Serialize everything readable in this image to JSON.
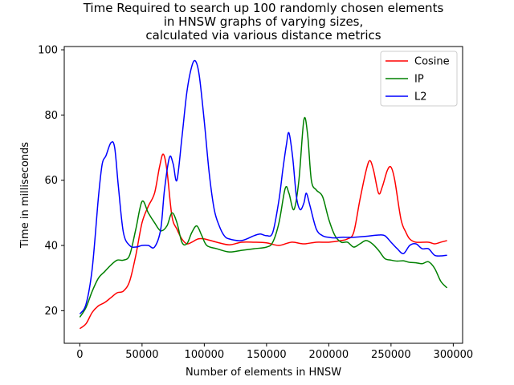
{
  "chart_data": {
    "type": "line",
    "title": [
      "Time Required to search up 100 randomly chosen elements",
      "in HNSW graphs of varying sizes,",
      "calculated via various distance metrics"
    ],
    "xlabel": "Number of elements in HNSW",
    "ylabel": "Time in milliseconds",
    "xlim": [
      -12500,
      307500
    ],
    "ylim": [
      10,
      101
    ],
    "xticks": [
      0,
      50000,
      100000,
      150000,
      200000,
      250000,
      300000
    ],
    "yticks": [
      20,
      40,
      60,
      80,
      100
    ],
    "grid": false,
    "legend_position": "top-right",
    "series": [
      {
        "name": "Cosine",
        "color": "#ff0000",
        "points": [
          [
            0,
            14.5
          ],
          [
            5000,
            16
          ],
          [
            10000,
            19.5
          ],
          [
            15000,
            21.5
          ],
          [
            20000,
            22.5
          ],
          [
            25000,
            24
          ],
          [
            30000,
            25.5
          ],
          [
            35000,
            26
          ],
          [
            40000,
            29
          ],
          [
            45000,
            37
          ],
          [
            50000,
            47
          ],
          [
            55000,
            52
          ],
          [
            60000,
            56
          ],
          [
            64000,
            64
          ],
          [
            67000,
            68
          ],
          [
            70000,
            63
          ],
          [
            74000,
            49
          ],
          [
            78000,
            45
          ],
          [
            82000,
            42
          ],
          [
            86000,
            40.5
          ],
          [
            90000,
            41
          ],
          [
            95000,
            42
          ],
          [
            100000,
            42
          ],
          [
            110000,
            41
          ],
          [
            120000,
            40.2
          ],
          [
            130000,
            41
          ],
          [
            140000,
            41
          ],
          [
            150000,
            40.8
          ],
          [
            160000,
            40
          ],
          [
            170000,
            41
          ],
          [
            180000,
            40.5
          ],
          [
            190000,
            41
          ],
          [
            200000,
            41
          ],
          [
            210000,
            41.5
          ],
          [
            215000,
            42
          ],
          [
            220000,
            44
          ],
          [
            225000,
            54
          ],
          [
            230000,
            63
          ],
          [
            233000,
            66
          ],
          [
            236000,
            63
          ],
          [
            240000,
            56
          ],
          [
            243000,
            58
          ],
          [
            247000,
            63
          ],
          [
            250000,
            64
          ],
          [
            253000,
            60
          ],
          [
            258000,
            48
          ],
          [
            262000,
            44
          ],
          [
            265000,
            42
          ],
          [
            270000,
            41
          ],
          [
            280000,
            41
          ],
          [
            285000,
            40.5
          ],
          [
            290000,
            41
          ],
          [
            295000,
            41.5
          ]
        ]
      },
      {
        "name": "IP",
        "color": "#008000",
        "points": [
          [
            0,
            18
          ],
          [
            5000,
            21
          ],
          [
            10000,
            26
          ],
          [
            15000,
            30
          ],
          [
            20000,
            32
          ],
          [
            25000,
            34
          ],
          [
            30000,
            35.5
          ],
          [
            35000,
            35.5
          ],
          [
            40000,
            37
          ],
          [
            45000,
            45
          ],
          [
            50000,
            53.5
          ],
          [
            55000,
            50
          ],
          [
            60000,
            47
          ],
          [
            65000,
            44.5
          ],
          [
            70000,
            46
          ],
          [
            74000,
            50
          ],
          [
            78000,
            47
          ],
          [
            82000,
            41
          ],
          [
            86000,
            40.5
          ],
          [
            90000,
            44
          ],
          [
            94000,
            46
          ],
          [
            98000,
            43
          ],
          [
            102000,
            40
          ],
          [
            110000,
            39
          ],
          [
            120000,
            38
          ],
          [
            130000,
            38.5
          ],
          [
            140000,
            39
          ],
          [
            150000,
            39.5
          ],
          [
            155000,
            41
          ],
          [
            160000,
            47
          ],
          [
            165000,
            57.5
          ],
          [
            168000,
            56
          ],
          [
            172000,
            51
          ],
          [
            176000,
            60
          ],
          [
            180000,
            78.5
          ],
          [
            183000,
            74
          ],
          [
            186000,
            60
          ],
          [
            190000,
            57
          ],
          [
            195000,
            55
          ],
          [
            200000,
            48
          ],
          [
            205000,
            43
          ],
          [
            210000,
            41
          ],
          [
            215000,
            41
          ],
          [
            220000,
            39.5
          ],
          [
            225000,
            40.5
          ],
          [
            230000,
            41.5
          ],
          [
            235000,
            40.5
          ],
          [
            240000,
            38.5
          ],
          [
            245000,
            36
          ],
          [
            250000,
            35.5
          ],
          [
            255000,
            35.2
          ],
          [
            260000,
            35.3
          ],
          [
            265000,
            34.8
          ],
          [
            270000,
            34.7
          ],
          [
            275000,
            34.4
          ],
          [
            280000,
            35
          ],
          [
            285000,
            33
          ],
          [
            290000,
            29
          ],
          [
            295000,
            27
          ]
        ]
      },
      {
        "name": "L2",
        "color": "#0000ff",
        "points": [
          [
            0,
            19
          ],
          [
            5000,
            22
          ],
          [
            10000,
            33
          ],
          [
            15000,
            55
          ],
          [
            18000,
            65
          ],
          [
            21000,
            67.5
          ],
          [
            25000,
            71.5
          ],
          [
            28000,
            70
          ],
          [
            31000,
            58
          ],
          [
            35000,
            44
          ],
          [
            40000,
            40
          ],
          [
            45000,
            39.5
          ],
          [
            50000,
            40
          ],
          [
            55000,
            40
          ],
          [
            60000,
            39.5
          ],
          [
            65000,
            45
          ],
          [
            68000,
            57
          ],
          [
            72000,
            67
          ],
          [
            75000,
            65
          ],
          [
            78000,
            60
          ],
          [
            82000,
            73
          ],
          [
            86000,
            87
          ],
          [
            90000,
            95
          ],
          [
            93000,
            96.5
          ],
          [
            96000,
            92
          ],
          [
            100000,
            78
          ],
          [
            104000,
            62
          ],
          [
            108000,
            51
          ],
          [
            112000,
            46
          ],
          [
            116000,
            43
          ],
          [
            120000,
            42
          ],
          [
            130000,
            41.5
          ],
          [
            140000,
            43
          ],
          [
            145000,
            43.5
          ],
          [
            150000,
            43
          ],
          [
            155000,
            44
          ],
          [
            160000,
            54
          ],
          [
            163000,
            63
          ],
          [
            166000,
            71
          ],
          [
            168000,
            74.5
          ],
          [
            171000,
            67
          ],
          [
            174000,
            55
          ],
          [
            177000,
            51
          ],
          [
            180000,
            53
          ],
          [
            182000,
            56
          ],
          [
            185000,
            52
          ],
          [
            190000,
            45
          ],
          [
            195000,
            43
          ],
          [
            200000,
            42.5
          ],
          [
            205000,
            42.3
          ],
          [
            210000,
            42.5
          ],
          [
            215000,
            42.5
          ],
          [
            220000,
            42.5
          ],
          [
            230000,
            42.8
          ],
          [
            240000,
            43.2
          ],
          [
            245000,
            43
          ],
          [
            250000,
            41
          ],
          [
            255000,
            39
          ],
          [
            260000,
            37.5
          ],
          [
            265000,
            40
          ],
          [
            270000,
            40.5
          ],
          [
            275000,
            39
          ],
          [
            280000,
            39
          ],
          [
            285000,
            37
          ],
          [
            290000,
            36.8
          ],
          [
            295000,
            37
          ]
        ]
      }
    ]
  }
}
